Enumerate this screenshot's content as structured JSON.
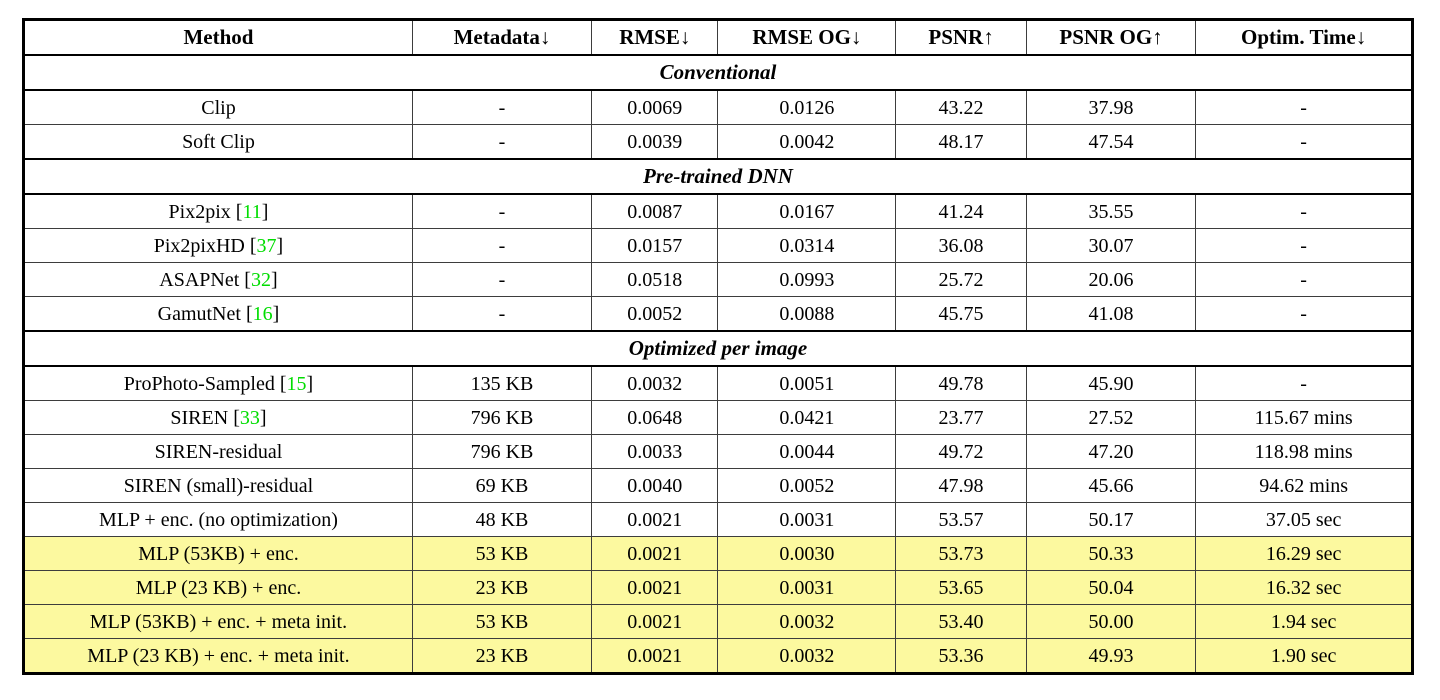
{
  "table": {
    "columns": [
      {
        "key": "method",
        "label": "Method"
      },
      {
        "key": "metadata",
        "label": "Metadata↓"
      },
      {
        "key": "rmse",
        "label": "RMSE↓"
      },
      {
        "key": "rmse_og",
        "label": "RMSE OG↓"
      },
      {
        "key": "psnr",
        "label": "PSNR↑"
      },
      {
        "key": "psnr_og",
        "label": "PSNR OG↑"
      },
      {
        "key": "optim_time",
        "label": "Optim. Time↓"
      }
    ],
    "sections": [
      {
        "title": "Conventional",
        "rows": [
          {
            "method": "Clip",
            "citation": null,
            "metadata": "-",
            "rmse": "0.0069",
            "rmse_og": "0.0126",
            "psnr": "43.22",
            "psnr_og": "37.98",
            "optim_time": "-",
            "highlight": false
          },
          {
            "method": "Soft Clip",
            "citation": null,
            "metadata": "-",
            "rmse": "0.0039",
            "rmse_og": "0.0042",
            "psnr": "48.17",
            "psnr_og": "47.54",
            "optim_time": "-",
            "highlight": false
          }
        ]
      },
      {
        "title": "Pre-trained DNN",
        "rows": [
          {
            "method": "Pix2pix",
            "citation": "11",
            "metadata": "-",
            "rmse": "0.0087",
            "rmse_og": "0.0167",
            "psnr": "41.24",
            "psnr_og": "35.55",
            "optim_time": "-",
            "highlight": false
          },
          {
            "method": "Pix2pixHD",
            "citation": "37",
            "metadata": "-",
            "rmse": "0.0157",
            "rmse_og": "0.0314",
            "psnr": "36.08",
            "psnr_og": "30.07",
            "optim_time": "-",
            "highlight": false
          },
          {
            "method": "ASAPNet",
            "citation": "32",
            "metadata": "-",
            "rmse": "0.0518",
            "rmse_og": "0.0993",
            "psnr": "25.72",
            "psnr_og": "20.06",
            "optim_time": "-",
            "highlight": false
          },
          {
            "method": "GamutNet",
            "citation": "16",
            "metadata": "-",
            "rmse": "0.0052",
            "rmse_og": "0.0088",
            "psnr": "45.75",
            "psnr_og": "41.08",
            "optim_time": "-",
            "highlight": false
          }
        ]
      },
      {
        "title": "Optimized per image",
        "rows": [
          {
            "method": "ProPhoto-Sampled",
            "citation": "15",
            "metadata": "135 KB",
            "rmse": "0.0032",
            "rmse_og": "0.0051",
            "psnr": "49.78",
            "psnr_og": "45.90",
            "optim_time": "-",
            "highlight": false
          },
          {
            "method": "SIREN",
            "citation": "33",
            "metadata": "796 KB",
            "rmse": "0.0648",
            "rmse_og": "0.0421",
            "psnr": "23.77",
            "psnr_og": "27.52",
            "optim_time": "115.67 mins",
            "highlight": false
          },
          {
            "method": "SIREN-residual",
            "citation": null,
            "metadata": "796 KB",
            "rmse": "0.0033",
            "rmse_og": "0.0044",
            "psnr": "49.72",
            "psnr_og": "47.20",
            "optim_time": "118.98 mins",
            "highlight": false
          },
          {
            "method": "SIREN (small)-residual",
            "citation": null,
            "metadata": "69 KB",
            "rmse": "0.0040",
            "rmse_og": "0.0052",
            "psnr": "47.98",
            "psnr_og": "45.66",
            "optim_time": "94.62 mins",
            "highlight": false
          },
          {
            "method": "MLP + enc. (no optimization)",
            "citation": null,
            "metadata": "48 KB",
            "rmse": "0.0021",
            "rmse_og": "0.0031",
            "psnr": "53.57",
            "psnr_og": "50.17",
            "optim_time": "37.05 sec",
            "highlight": false
          },
          {
            "method": "MLP (53KB) + enc.",
            "citation": null,
            "metadata": "53 KB",
            "rmse": "0.0021",
            "rmse_og": "0.0030",
            "psnr": "53.73",
            "psnr_og": "50.33",
            "optim_time": "16.29 sec",
            "highlight": true
          },
          {
            "method": "MLP (23 KB) + enc.",
            "citation": null,
            "metadata": "23 KB",
            "rmse": "0.0021",
            "rmse_og": "0.0031",
            "psnr": "53.65",
            "psnr_og": "50.04",
            "optim_time": "16.32 sec",
            "highlight": true
          },
          {
            "method": "MLP (53KB) + enc. + meta init.",
            "citation": null,
            "metadata": "53 KB",
            "rmse": "0.0021",
            "rmse_og": "0.0032",
            "psnr": "53.40",
            "psnr_og": "50.00",
            "optim_time": "1.94 sec",
            "highlight": true
          },
          {
            "method": "MLP (23 KB) + enc. + meta init.",
            "citation": null,
            "metadata": "23 KB",
            "rmse": "0.0021",
            "rmse_og": "0.0032",
            "psnr": "53.36",
            "psnr_og": "49.93",
            "optim_time": "1.90 sec",
            "highlight": true
          }
        ]
      }
    ]
  },
  "colors": {
    "row_highlight": "#FCF99F",
    "citation_green": "#00DD00",
    "outer_border": "#000000",
    "grid_line": "#3d3d3d"
  },
  "column_widths_pct": [
    28.0,
    12.9,
    9.1,
    12.8,
    9.4,
    12.2,
    15.6
  ]
}
